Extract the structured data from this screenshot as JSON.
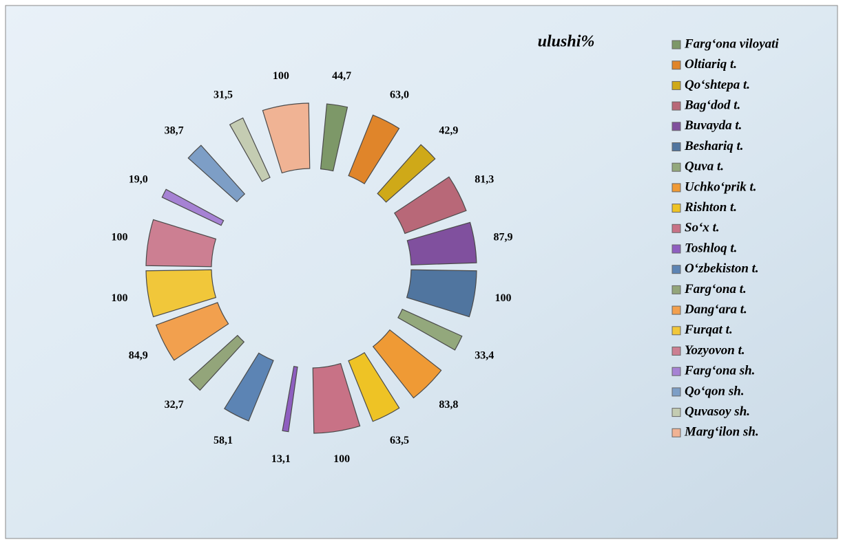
{
  "chart_data": {
    "type": "doughnut",
    "title": "ulushi%",
    "categories": [
      "Farg‘ona viloyati",
      "Oltiariq t.",
      "Qo‘shtepa t.",
      "Bag‘dod t.",
      "Buvayda t.",
      "Beshariq t.",
      "Quva t.",
      "Uchko‘prik t.",
      "Rishton t.",
      "So‘x t.",
      "Toshloq t.",
      "O‘zbekiston t.",
      "Farg‘ona t.",
      "Dang‘ara t.",
      "Furqat t.",
      "Yozyovon t.",
      "Farg‘ona sh.",
      "Qo‘qon sh.",
      "Quvasoy sh.",
      "Marg‘ilon sh."
    ],
    "values": [
      44.7,
      63.0,
      42.9,
      81.3,
      87.9,
      100,
      33.4,
      83.8,
      63.5,
      100,
      13.1,
      58.1,
      32.7,
      84.9,
      100,
      100,
      19.0,
      38.7,
      31.5,
      100
    ],
    "value_labels": [
      "44,7",
      "63,0",
      "42,9",
      "81,3",
      "87,9",
      "100",
      "33,4",
      "83,8",
      "63,5",
      "100",
      "13,1",
      "58,1",
      "32,7",
      "84,9",
      "100",
      "100",
      "19,0",
      "38,7",
      "31,5",
      "100"
    ],
    "colors": [
      "#7d9868",
      "#e0852a",
      "#cfa918",
      "#b86878",
      "#80509e",
      "#50759f",
      "#93a87c",
      "#ef9a35",
      "#eec325",
      "#c87286",
      "#8e5ec0",
      "#5c84b4",
      "#93a57a",
      "#f2a04e",
      "#f1c73a",
      "#cc7f92",
      "#a682d4",
      "#7d9ec6",
      "#c4ccb2",
      "#f0b394"
    ]
  }
}
